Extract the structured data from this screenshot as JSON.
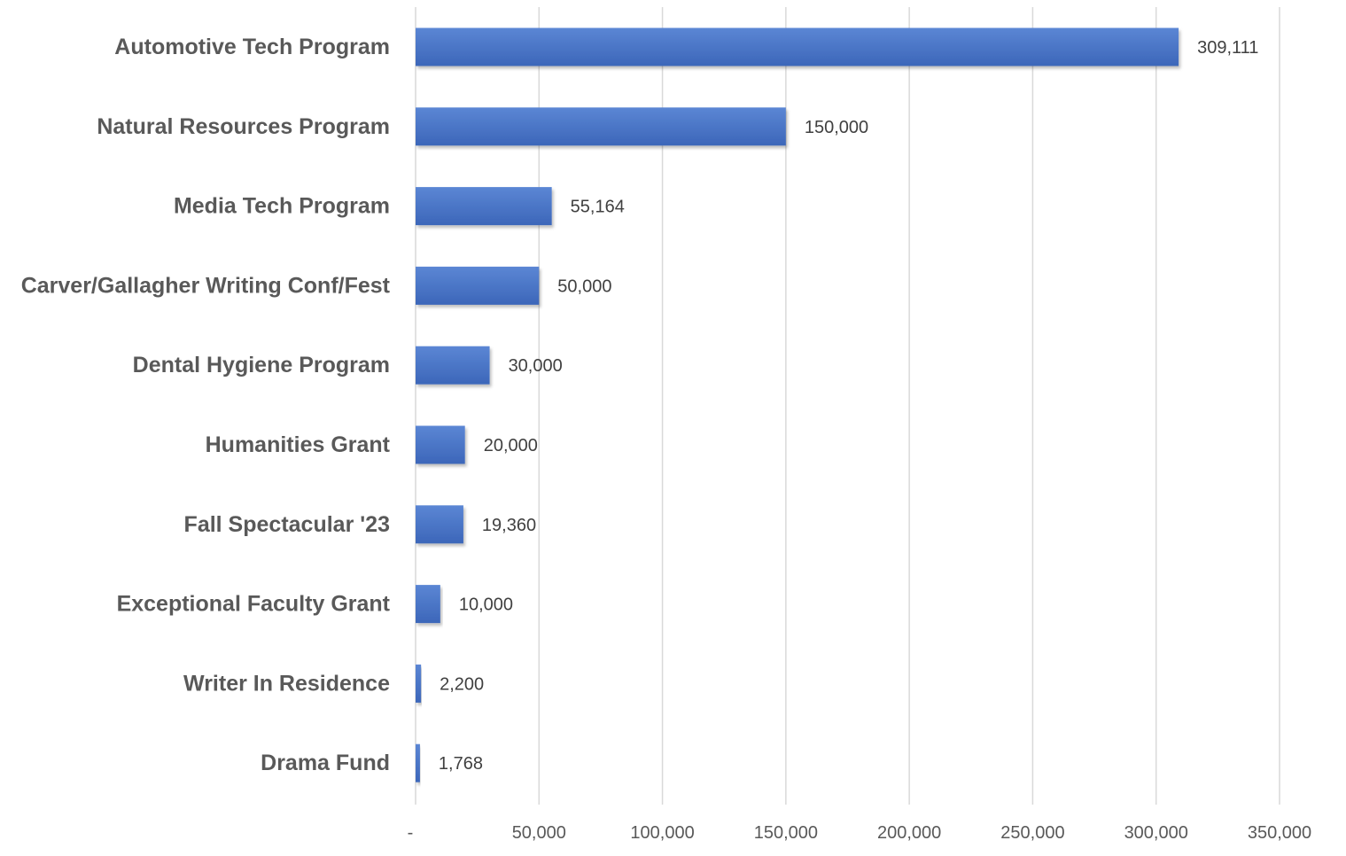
{
  "chart_data": {
    "type": "bar",
    "orientation": "horizontal",
    "title": "",
    "xlabel": "",
    "ylabel": "",
    "categories": [
      "Automotive Tech Program",
      "Natural Resources Program",
      "Media Tech Program",
      "Carver/Gallagher Writing Conf/Fest",
      "Dental Hygiene Program",
      "Humanities Grant",
      "Fall Spectacular '23",
      "Exceptional Faculty Grant",
      "Writer In Residence",
      "Drama Fund"
    ],
    "values": [
      309111,
      150000,
      55164,
      50000,
      30000,
      20000,
      19360,
      10000,
      2200,
      1768
    ],
    "data_labels": [
      "309,111",
      "150,000",
      "55,164",
      "50,000",
      "30,000",
      "20,000",
      "19,360",
      "10,000",
      "2,200",
      "1,768"
    ],
    "xlim": [
      0,
      350000
    ],
    "x_ticks": [
      0,
      50000,
      100000,
      150000,
      200000,
      250000,
      300000,
      350000
    ],
    "x_tick_labels": [
      "-",
      "50,000",
      "100,000",
      "150,000",
      "200,000",
      "250,000",
      "300,000",
      "350,000"
    ],
    "grid": "vertical",
    "legend": "none",
    "bar_color": "#4472C4"
  }
}
